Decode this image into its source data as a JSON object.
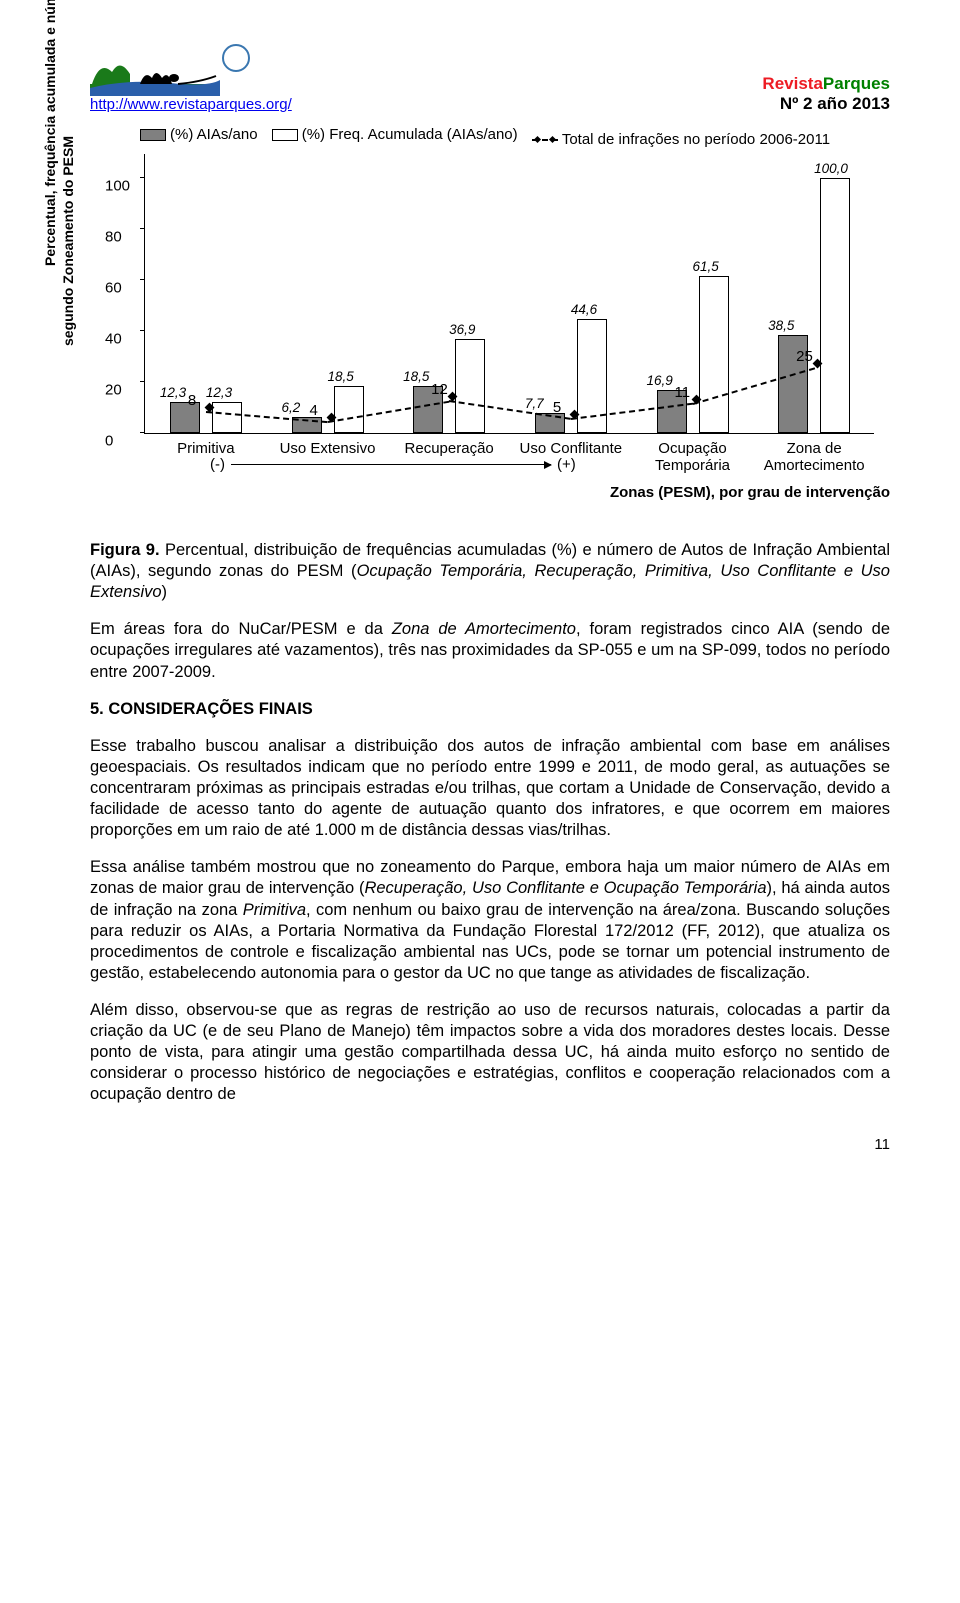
{
  "header": {
    "url": "http://www.revistaparques.org/",
    "brand1": "Revista",
    "brand2": "Parques",
    "issue": "Nº 2 año 2013"
  },
  "chart": {
    "type": "bar+line",
    "legend": {
      "s1": "(%) AIAs/ano",
      "s2": "(%) Freq. Acumulada (AIAs/ano)",
      "s3": "Total de infrações no período 2006-2011"
    },
    "yaxis_label_line1": "Percentual, frequência acumulada e número de AIAs,",
    "yaxis_label_line2": "segundo Zoneamento do PESM",
    "ylim": [
      0,
      110
    ],
    "yticks": [
      0,
      20,
      40,
      60,
      80,
      100
    ],
    "categories": [
      "Primitiva",
      "Uso Extensivo",
      "Recuperação",
      "Uso Conflitante",
      "Ocupação Temporária",
      "Zona de Amortecimento"
    ],
    "series_aias": {
      "values": [
        12.3,
        6.2,
        18.5,
        7.7,
        16.9,
        38.5
      ],
      "labels": [
        "12,3",
        "6,2",
        "18,5",
        "7,7",
        "16,9",
        "38,5"
      ],
      "color": "#808080"
    },
    "series_freq": {
      "values": [
        12.3,
        18.5,
        36.9,
        44.6,
        61.5,
        100.0
      ],
      "labels": [
        "12,3",
        "18,5",
        "36,9",
        "44,6",
        "61,5",
        "100,0"
      ],
      "color": "#ffffff"
    },
    "series_infr": {
      "values": [
        8,
        4,
        12,
        5,
        11,
        25
      ],
      "labels": [
        "8",
        "4",
        "12",
        "5",
        "11",
        "25"
      ]
    },
    "arrow_left": "(-)",
    "arrow_right": "(+)",
    "x_caption": "Zonas (PESM), por grau de intervenção",
    "background_color": "#ffffff",
    "bar_border": "#000000",
    "font": "Arial"
  },
  "figcap": {
    "label": "Figura 9.",
    "text": " Percentual, distribuição de frequências acumuladas (%) e número de Autos de Infração Ambiental (AIAs), segundo zonas do PESM (",
    "italic": "Ocupação Temporária, Recuperação, Primitiva, Uso Conflitante e Uso Extensivo",
    "tail": ")"
  },
  "p1": {
    "a": "Em áreas fora do NuCar/PESM e da ",
    "i1": "Zona de Amortecimento",
    "b": ", foram registrados cinco AIA (sendo de ocupações irregulares até vazamentos), três nas proximidades da SP-055 e um na SP-099, todos no período entre 2007-2009."
  },
  "sec5": "5. CONSIDERAÇÕES FINAIS",
  "p2": "Esse trabalho buscou analisar a distribuição dos autos de infração ambiental com base em análises geoespaciais. Os resultados indicam que no período entre 1999 e 2011, de modo geral, as autuações se concentraram próximas as principais estradas e/ou trilhas, que cortam a Unidade de Conservação, devido a facilidade de acesso tanto do agente de autuação quanto dos infratores, e que ocorrem em maiores proporções em um raio de até 1.000 m de distância dessas vias/trilhas.",
  "p3": {
    "a": "Essa análise também mostrou que no zoneamento do Parque, embora haja um maior número de AIAs em zonas de maior grau de intervenção (",
    "i1": "Recuperação, Uso Conflitante e Ocupação Temporária",
    "b": "), há ainda autos de infração na zona ",
    "i2": "Primitiva",
    "c": ", com nenhum ou baixo grau de intervenção na área/zona. Buscando soluções para reduzir os AIAs, a Portaria Normativa da Fundação Florestal 172/2012 (FF, 2012), que atualiza os procedimentos de controle e fiscalização ambiental nas UCs, pode se tornar um potencial instrumento de gestão, estabelecendo autonomia para o gestor da UC no que tange as atividades de fiscalização."
  },
  "p4": "Além disso, observou-se que as regras de restrição ao uso de recursos naturais, colocadas a partir da criação da UC (e de seu Plano de Manejo) têm impactos sobre a vida dos moradores destes locais. Desse ponto de vista, para atingir uma gestão compartilhada dessa UC, há ainda muito esforço no sentido de considerar o processo histórico de negociações e estratégias, conflitos e cooperação relacionados com a ocupação dentro de",
  "pagenum": "11"
}
